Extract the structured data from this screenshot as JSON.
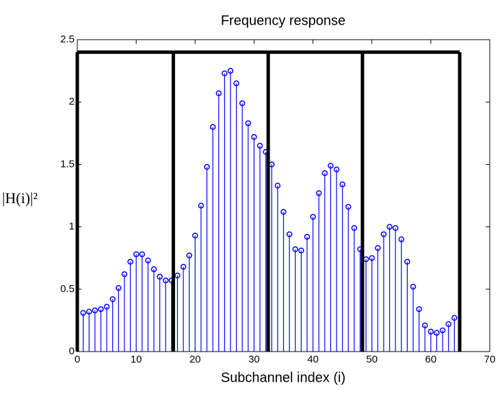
{
  "chart_data": {
    "type": "stem",
    "title": "Frequency response",
    "xlabel": "Subchannel index (i)",
    "ylabel": "|H(i)|²",
    "x": [
      1,
      2,
      3,
      4,
      5,
      6,
      7,
      8,
      9,
      10,
      11,
      12,
      13,
      14,
      15,
      16,
      17,
      18,
      19,
      20,
      21,
      22,
      23,
      24,
      25,
      26,
      27,
      28,
      29,
      30,
      31,
      32,
      33,
      34,
      35,
      36,
      37,
      38,
      39,
      40,
      41,
      42,
      43,
      44,
      45,
      46,
      47,
      48,
      49,
      50,
      51,
      52,
      53,
      54,
      55,
      56,
      57,
      58,
      59,
      60,
      61,
      62,
      63,
      64
    ],
    "values": [
      0.31,
      0.32,
      0.33,
      0.34,
      0.36,
      0.42,
      0.51,
      0.62,
      0.72,
      0.78,
      0.78,
      0.73,
      0.66,
      0.6,
      0.57,
      0.57,
      0.61,
      0.68,
      0.77,
      0.93,
      1.17,
      1.48,
      1.8,
      2.07,
      2.23,
      2.25,
      2.15,
      1.99,
      1.83,
      1.72,
      1.65,
      1.6,
      1.5,
      1.33,
      1.12,
      0.94,
      0.82,
      0.81,
      0.92,
      1.08,
      1.27,
      1.43,
      1.49,
      1.46,
      1.34,
      1.16,
      0.99,
      0.82,
      0.74,
      0.75,
      0.83,
      0.94,
      1.0,
      0.99,
      0.9,
      0.72,
      0.52,
      0.34,
      0.21,
      0.16,
      0.15,
      0.17,
      0.22,
      0.27
    ],
    "color": "#0000ff",
    "block_edges": [
      0,
      16.3,
      32.4,
      48.4,
      64.9
    ],
    "block_top": 2.4,
    "xlim": [
      0,
      70
    ],
    "xticks": [
      0,
      10,
      20,
      30,
      40,
      50,
      60,
      70
    ],
    "ylim": [
      0,
      2.5
    ],
    "yticks": [
      0,
      0.5,
      1,
      1.5,
      2,
      2.5
    ]
  }
}
